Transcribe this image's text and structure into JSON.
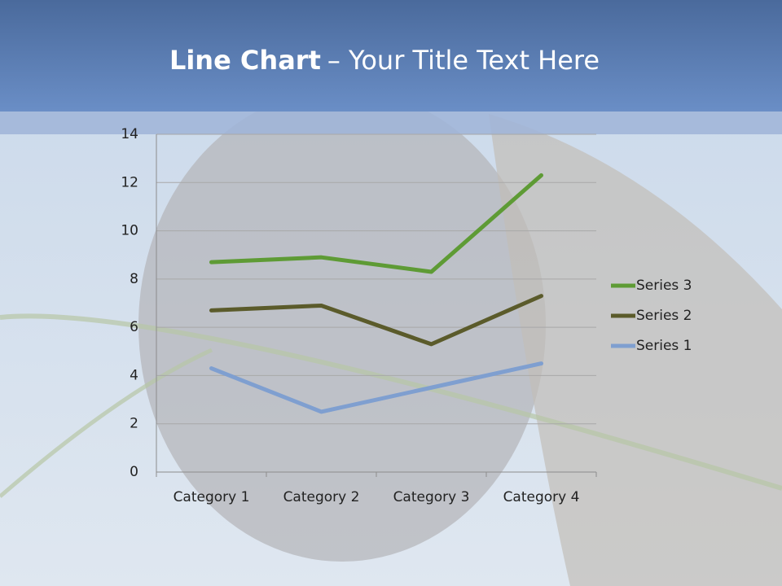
{
  "chart_data": {
    "type": "line",
    "title_bold": "Line Chart",
    "title_rest": "– Your Title Text Here",
    "categories": [
      "Category 1",
      "Category 2",
      "Category 3",
      "Category 4"
    ],
    "series": [
      {
        "name": "Series 1",
        "color": "#7f9fd0",
        "values": [
          4.3,
          2.5,
          3.5,
          4.5
        ]
      },
      {
        "name": "Series 2",
        "color": "#5b5b2b",
        "values": [
          6.7,
          6.9,
          5.3,
          7.3
        ]
      },
      {
        "name": "Series 3",
        "color": "#5e9b35",
        "values": [
          8.7,
          8.9,
          8.3,
          12.3
        ]
      }
    ],
    "ylim": [
      0,
      14
    ],
    "yticks": [
      0,
      2,
      4,
      6,
      8,
      10,
      12,
      14
    ],
    "grid": true,
    "legend": "right"
  }
}
